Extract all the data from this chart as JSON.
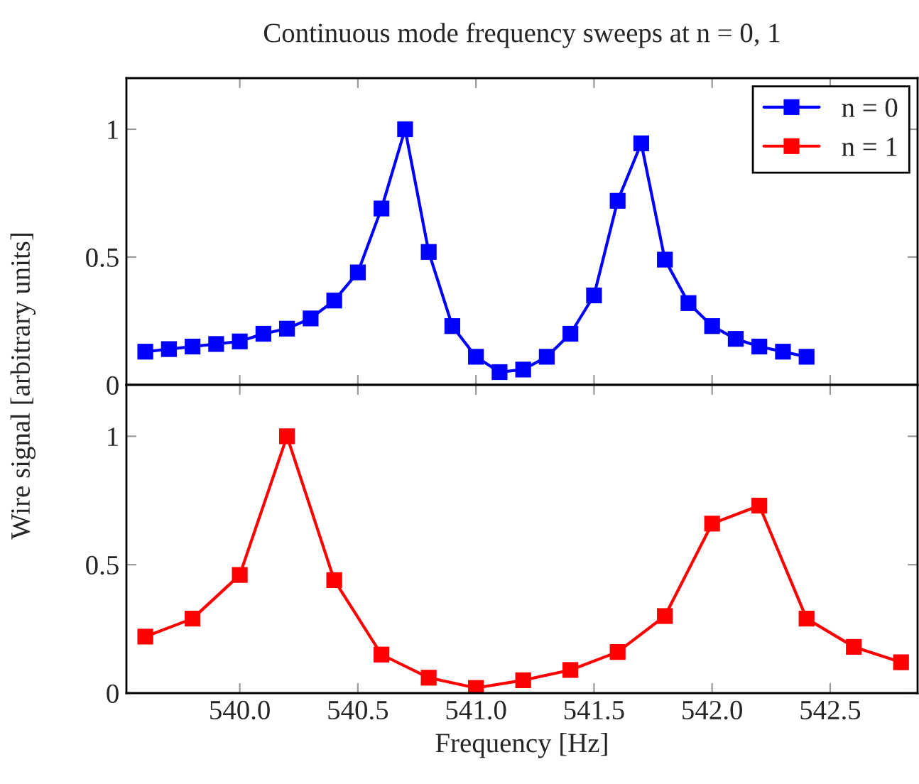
{
  "chart_data": [
    {
      "type": "line",
      "title": "Continuous mode frequency sweeps at n = 0, 1",
      "tick_labels": "y",
      "legend": "top right",
      "marker": "square",
      "line_style": "solid",
      "grid": false,
      "xlim": [
        539.52,
        542.87
      ],
      "ylim": [
        0,
        1.2
      ],
      "xticks": [
        {
          "value": 540,
          "label": null
        },
        {
          "value": 540.5,
          "label": null
        },
        {
          "value": 541,
          "label": null
        },
        {
          "value": 541.5,
          "label": null
        },
        {
          "value": 542,
          "label": null
        },
        {
          "value": 542.5,
          "label": null
        }
      ],
      "yticks": [
        0,
        0.5,
        1
      ],
      "series": [
        {
          "name": "n = 0",
          "color": "#0000ff",
          "x": [
            539.6,
            539.7,
            539.8,
            539.9,
            540.0,
            540.1,
            540.2,
            540.3,
            540.4,
            540.5,
            540.6,
            540.7,
            540.8,
            540.9,
            541.0,
            541.1,
            541.2,
            541.3,
            541.4,
            541.5,
            541.6,
            541.7,
            541.8,
            541.9,
            542.0,
            542.1,
            542.2,
            542.3,
            542.4
          ],
          "values": [
            0.13,
            0.14,
            0.15,
            0.16,
            0.17,
            0.2,
            0.22,
            0.26,
            0.33,
            0.44,
            0.69,
            1.0,
            0.52,
            0.23,
            0.11,
            0.05,
            0.06,
            0.11,
            0.2,
            0.35,
            0.72,
            0.945,
            0.49,
            0.32,
            0.23,
            0.18,
            0.15,
            0.13,
            0.11
          ]
        }
      ]
    },
    {
      "type": "line",
      "xlabel": "Frequency [Hz]",
      "ylabel": "Wire signal [arbitrary units]",
      "marker": "square",
      "line_style": "solid",
      "grid": false,
      "xlim": [
        539.52,
        542.87
      ],
      "ylim": [
        0,
        1.2
      ],
      "xticks": [
        {
          "value": 540,
          "label": "540.0"
        },
        {
          "value": 540.5,
          "label": "540.5"
        },
        {
          "value": 541,
          "label": "541.0"
        },
        {
          "value": 541.5,
          "label": "541.5"
        },
        {
          "value": 542,
          "label": "542.0"
        },
        {
          "value": 542.5,
          "label": "542.5"
        }
      ],
      "yticks": [
        0,
        0.5,
        1
      ],
      "series": [
        {
          "name": "n = 1",
          "color": "#ff0000",
          "x": [
            539.6,
            539.8,
            540.0,
            540.2,
            540.4,
            540.6,
            540.8,
            541.0,
            541.2,
            541.4,
            541.6,
            541.8,
            542.0,
            542.2,
            542.4,
            542.6,
            542.8
          ],
          "values": [
            0.22,
            0.29,
            0.46,
            1.0,
            0.44,
            0.15,
            0.06,
            0.02,
            0.05,
            0.09,
            0.16,
            0.3,
            0.66,
            0.73,
            0.29,
            0.18,
            0.12
          ]
        }
      ]
    }
  ]
}
